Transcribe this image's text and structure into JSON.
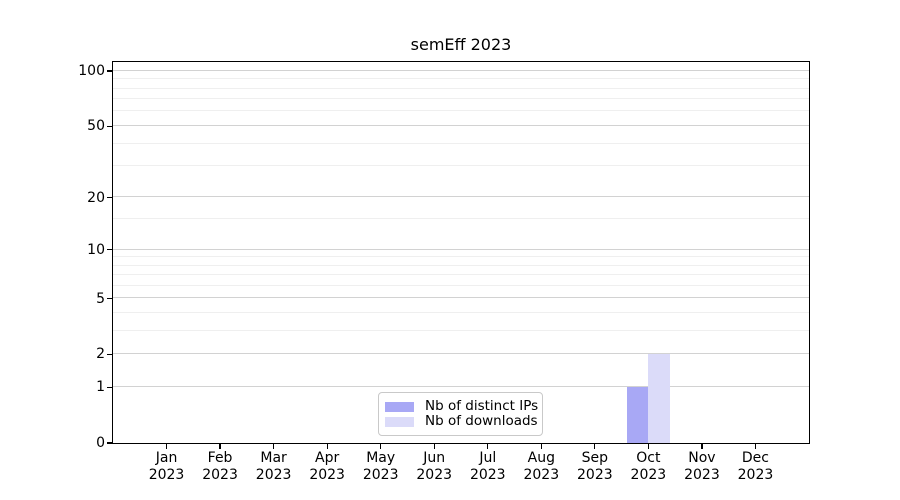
{
  "title": "semEff 2023",
  "chart_data": {
    "type": "bar",
    "title": "semEff 2023",
    "x": [
      "Jan",
      "Feb",
      "Mar",
      "Apr",
      "May",
      "Jun",
      "Jul",
      "Aug",
      "Sep",
      "Oct",
      "Nov",
      "Dec"
    ],
    "x_year": "2023",
    "series": [
      {
        "name": "Nb of distinct IPs",
        "color": "#a8a8f5",
        "values": [
          0,
          0,
          0,
          0,
          0,
          0,
          0,
          0,
          0,
          1,
          0,
          0
        ]
      },
      {
        "name": "Nb of downloads",
        "color": "#dbdbf9",
        "values": [
          0,
          0,
          0,
          0,
          0,
          0,
          0,
          0,
          0,
          2,
          0,
          0
        ]
      }
    ],
    "yscale": "log1p",
    "ylim": [
      0,
      112
    ],
    "y_major_ticks": [
      0,
      1,
      2,
      5,
      10,
      20,
      50,
      100
    ],
    "y_minor_gridlines": [
      3,
      4,
      6,
      7,
      8,
      9,
      15,
      30,
      40,
      60,
      70,
      80,
      90
    ],
    "legend_position": "lower center",
    "grid": "major+minor"
  },
  "colors": {
    "bar_distinct_ips": "#a8a8f5",
    "bar_downloads": "#dbdbf9",
    "grid_major": "#d2d2d2",
    "grid_minor": "#efefef",
    "axis": "#000000",
    "legend_border": "#c9c9c9",
    "background": "#ffffff"
  },
  "legend": {
    "items": [
      {
        "label": "Nb of distinct IPs",
        "swatch": "#a8a8f5"
      },
      {
        "label": "Nb of downloads",
        "swatch": "#dbdbf9"
      }
    ]
  }
}
